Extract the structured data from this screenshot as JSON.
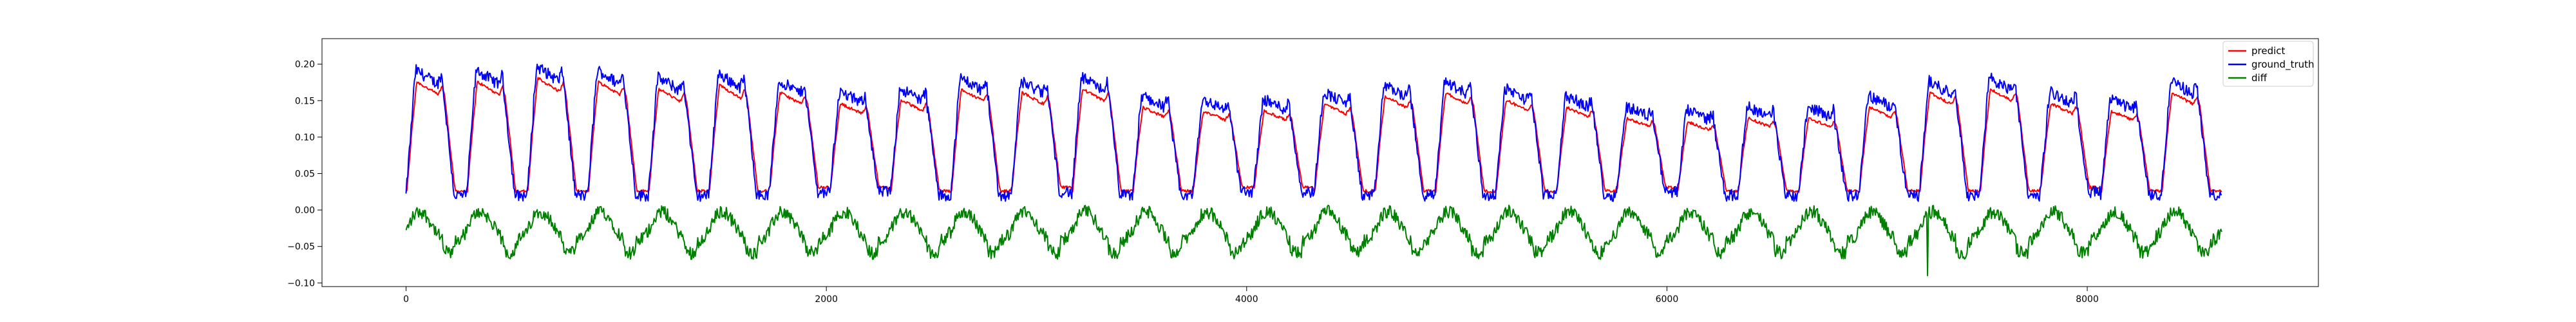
{
  "chart_data": {
    "type": "line",
    "title": "",
    "xlabel": "",
    "ylabel": "",
    "xlim": [
      -400,
      9100
    ],
    "ylim": [
      -0.105,
      0.235
    ],
    "x_ticks": [
      0,
      2000,
      4000,
      6000,
      8000
    ],
    "x_tick_labels": [
      "0",
      "2000",
      "4000",
      "6000",
      "8000"
    ],
    "y_ticks": [
      -0.1,
      -0.05,
      0.0,
      0.05,
      0.1,
      0.15,
      0.2
    ],
    "y_tick_labels": [
      "−0.10",
      "−0.05",
      "0.00",
      "0.05",
      "0.10",
      "0.15",
      "0.20"
    ],
    "grid": false,
    "legend": {
      "placement": "top-right"
    },
    "x_range": [
      0,
      8640
    ],
    "cycle_period": 288,
    "num_cycles": 30,
    "cycle_peaks": [
      0.18,
      0.18,
      0.185,
      0.18,
      0.17,
      0.175,
      0.165,
      0.15,
      0.155,
      0.17,
      0.165,
      0.17,
      0.145,
      0.14,
      0.14,
      0.15,
      0.16,
      0.165,
      0.155,
      0.145,
      0.13,
      0.125,
      0.13,
      0.13,
      0.145,
      0.165,
      0.17,
      0.15,
      0.14,
      0.165
    ],
    "cycle_troughs": [
      0.02,
      0.02,
      0.02,
      0.02,
      0.02,
      0.02,
      0.025,
      0.025,
      0.02,
      0.02,
      0.025,
      0.02,
      0.02,
      0.025,
      0.025,
      0.02,
      0.02,
      0.02,
      0.02,
      0.02,
      0.025,
      0.02,
      0.02,
      0.02,
      0.02,
      0.02,
      0.02,
      0.025,
      0.02,
      0.02
    ],
    "anomaly": {
      "x": 7240,
      "y": -0.09
    },
    "series": [
      {
        "name": "predict",
        "color": "#ff0000"
      },
      {
        "name": "ground_truth",
        "color": "#0000ff"
      },
      {
        "name": "diff",
        "color": "#008000"
      }
    ]
  }
}
